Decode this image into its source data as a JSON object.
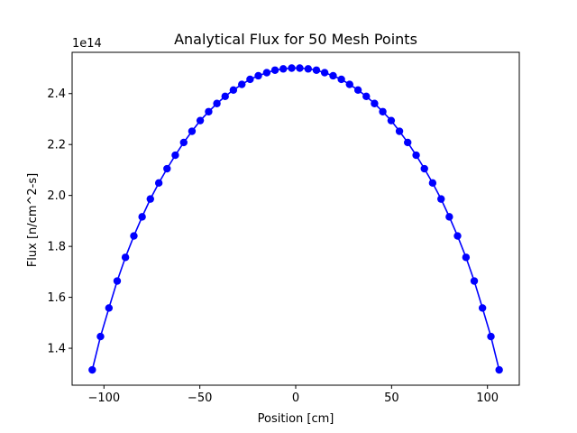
{
  "chart_data": {
    "type": "line",
    "title": "Analytical Flux for 50 Mesh Points",
    "xlabel": "Position [cm]",
    "ylabel": "Flux [n/cm^2-s]",
    "y_offset_text": "1e14",
    "y_scale": 100000000000000.0,
    "xlim": [
      -116.6,
      116.6
    ],
    "ylim": [
      1.255,
      2.562
    ],
    "xticks": [
      -100,
      -50,
      0,
      50,
      100
    ],
    "xtick_labels": [
      "−100",
      "−50",
      "0",
      "50",
      "100"
    ],
    "yticks": [
      1.4,
      1.6,
      1.8,
      2.0,
      2.2,
      2.4
    ],
    "ytick_labels": [
      "1.4",
      "1.6",
      "1.8",
      "2.0",
      "2.2",
      "2.4"
    ],
    "grid": false,
    "legend": "none",
    "series": [
      {
        "color": "#0000ff",
        "marker": "circle",
        "x": [
          -106.1,
          -101.8,
          -97.4,
          -93.1,
          -88.8,
          -84.4,
          -80.1,
          -75.8,
          -71.4,
          -67.1,
          -62.8,
          -58.4,
          -54.1,
          -49.8,
          -45.4,
          -41.1,
          -36.8,
          -32.5,
          -28.1,
          -23.8,
          -19.5,
          -15.1,
          -10.8,
          -6.5,
          -2.1,
          2.1,
          6.5,
          10.8,
          15.1,
          19.5,
          23.8,
          28.1,
          32.5,
          36.8,
          41.1,
          45.4,
          49.8,
          54.1,
          58.4,
          62.8,
          67.1,
          71.4,
          75.8,
          80.1,
          84.4,
          88.8,
          93.1,
          97.4,
          101.8,
          106.1
        ],
        "y": [
          1.315,
          1.446,
          1.558,
          1.664,
          1.757,
          1.841,
          1.916,
          1.986,
          2.049,
          2.105,
          2.158,
          2.208,
          2.252,
          2.294,
          2.329,
          2.361,
          2.389,
          2.414,
          2.436,
          2.456,
          2.47,
          2.482,
          2.492,
          2.497,
          2.5,
          2.5,
          2.497,
          2.492,
          2.482,
          2.47,
          2.456,
          2.436,
          2.414,
          2.389,
          2.361,
          2.329,
          2.294,
          2.252,
          2.208,
          2.158,
          2.105,
          2.049,
          1.986,
          1.916,
          1.841,
          1.757,
          1.664,
          1.558,
          1.446,
          1.315
        ]
      }
    ]
  }
}
